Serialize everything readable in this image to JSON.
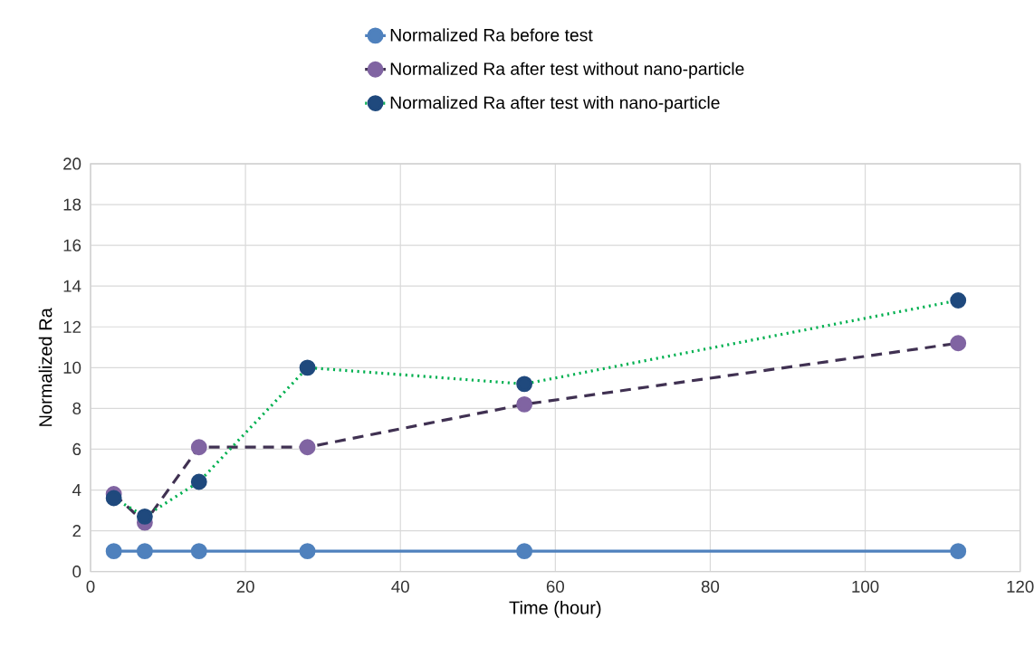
{
  "chart_data": {
    "type": "line",
    "xlabel": "Time (hour)",
    "ylabel": "Normalized Ra",
    "x": [
      3,
      7,
      14,
      28,
      56,
      112
    ],
    "series": [
      {
        "name": "Normalized Ra before test",
        "color": "#4f81bd",
        "colors": [
          "#4f81bd",
          "#4f81bd",
          "#4f81bd",
          "#4f81bd",
          "#4f81bd",
          "#4f81bd"
        ],
        "line_style": "solid",
        "values": [
          1,
          1,
          1,
          1,
          1,
          1
        ]
      },
      {
        "name": "Normalized Ra after test without nano-particle",
        "color": "#403152",
        "colors": [
          "#8064a2",
          "#8064a2",
          "#8064a2",
          "#8064a2",
          "#8064a2",
          "#8064a2"
        ],
        "line_style": "dashed",
        "values": [
          3.8,
          2.4,
          6.1,
          6.1,
          8.2,
          11.2
        ]
      },
      {
        "name": "Normalized Ra after test with nano-particle",
        "color": "#00b050",
        "colors": [
          "#1f497d",
          "#1f497d",
          "#1f497d",
          "#1f497d",
          "#1f497d",
          "#1f497d"
        ],
        "line_style": "dotted",
        "values": [
          3.6,
          2.7,
          4.4,
          10,
          9.2,
          13.3
        ]
      }
    ],
    "xlim": [
      0,
      120
    ],
    "xticks": [
      0,
      20,
      40,
      60,
      80,
      100,
      120
    ],
    "ylim": [
      0,
      20
    ],
    "yticks": [
      0,
      2,
      4,
      6,
      8,
      10,
      12,
      14,
      16,
      18,
      20
    ],
    "grid": true,
    "legend": "top",
    "marker": "circle"
  }
}
